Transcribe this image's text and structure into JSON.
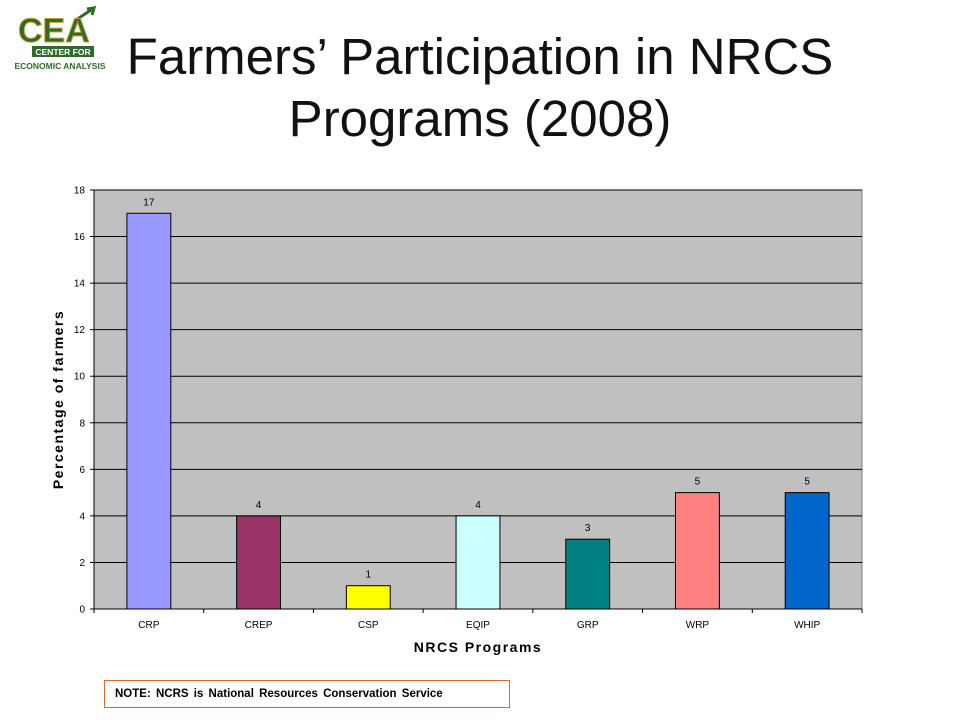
{
  "logo": {
    "wordmark": "CEA",
    "line1": "CENTER FOR",
    "line2": "ECONOMIC ANALYSIS",
    "colors": {
      "green": "#2e6b2a",
      "gold": "#c8a13a"
    }
  },
  "slide": {
    "title_line1": "Farmers’ Participation in NRCS",
    "title_line2": "Programs (2008)",
    "note": "NOTE: NCRS is National Resources Conservation Service"
  },
  "chart_data": {
    "type": "bar",
    "categories": [
      "CRP",
      "CREP",
      "CSP",
      "EQIP",
      "GRP",
      "WRP",
      "WHIP"
    ],
    "values": [
      17,
      4,
      1,
      4,
      3,
      5,
      5
    ],
    "bar_colors": [
      "#9999ff",
      "#993366",
      "#ffff00",
      "#ccffff",
      "#008080",
      "#ff8080",
      "#0066cc"
    ],
    "xlabel": "NRCS Programs",
    "ylabel": "Percentage of farmers",
    "ylim": [
      0,
      18
    ],
    "yticks": [
      0,
      2,
      4,
      6,
      8,
      10,
      12,
      14,
      16,
      18
    ],
    "grid": true,
    "plot_background": "#c0c0c0",
    "data_labels": true
  }
}
